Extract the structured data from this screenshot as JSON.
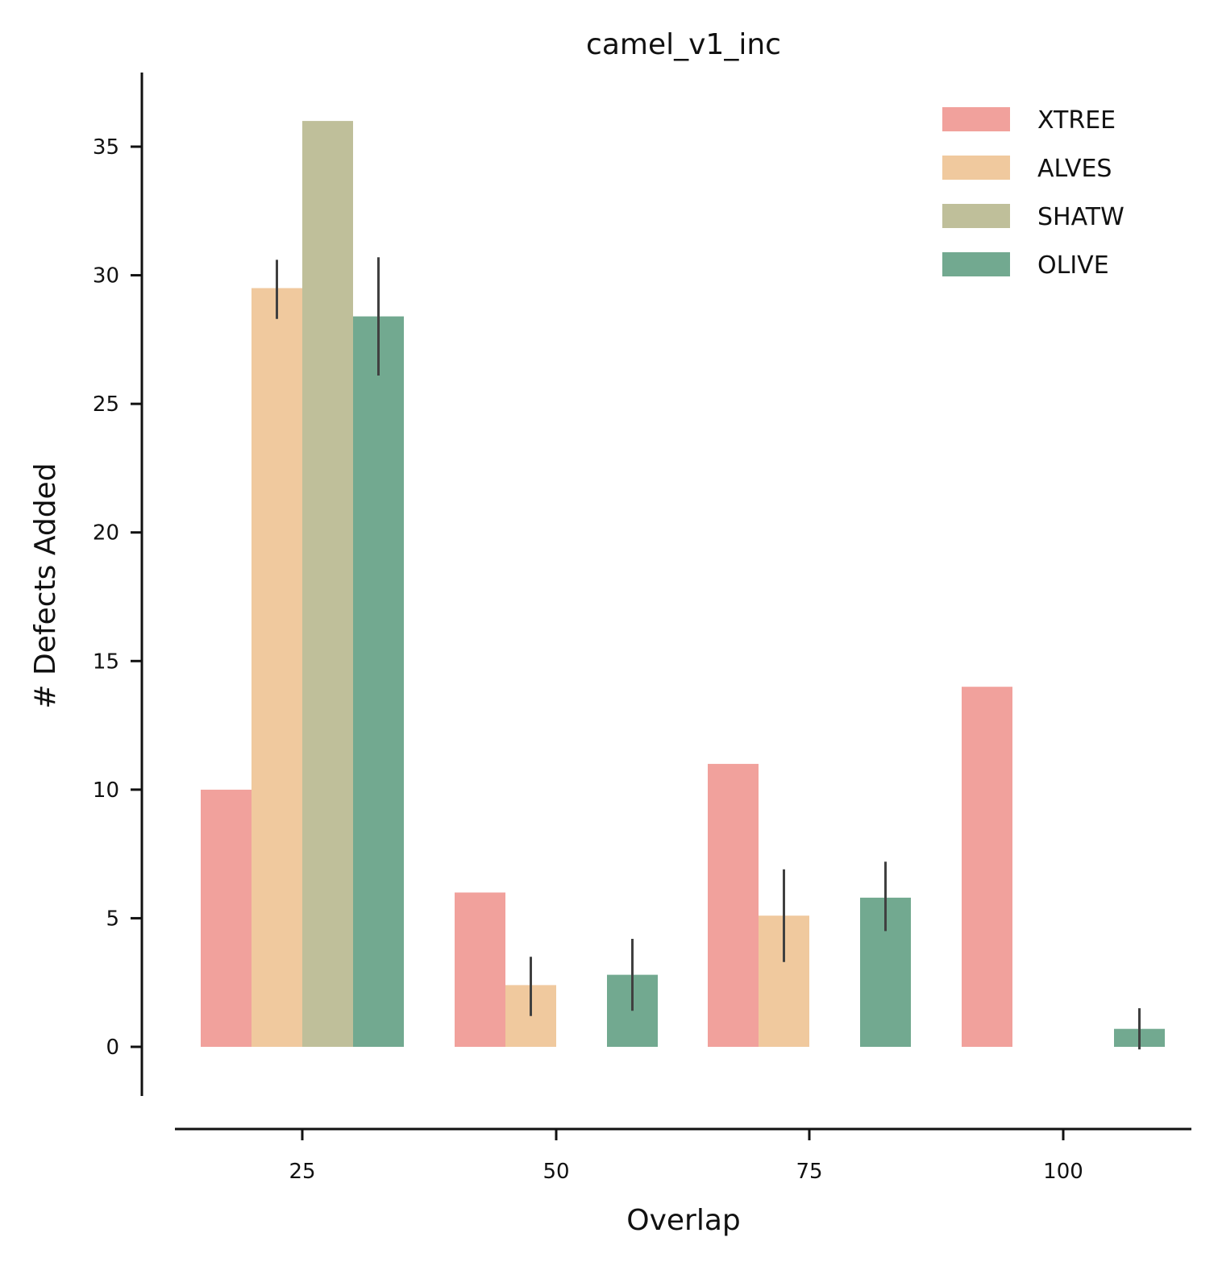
{
  "chart_data": {
    "type": "bar",
    "title": "camel_v1_inc",
    "xlabel": "Overlap",
    "ylabel": "# Defects Added",
    "categories": [
      "25",
      "50",
      "75",
      "100"
    ],
    "xticks": [
      "25",
      "50",
      "75",
      "100"
    ],
    "yticks": [
      "0",
      "5",
      "10",
      "15",
      "20",
      "25",
      "30",
      "35"
    ],
    "ylim": [
      -2,
      37.8
    ],
    "grid": false,
    "legend": "top-right",
    "series": [
      {
        "name": "XTREE",
        "color": "#f1a19c",
        "values": [
          10,
          6,
          11,
          14
        ],
        "err_low": [
          null,
          null,
          null,
          null
        ],
        "err_high": [
          null,
          null,
          null,
          null
        ]
      },
      {
        "name": "ALVES",
        "color": "#f0c99e",
        "values": [
          29.5,
          2.4,
          5.1,
          null
        ],
        "err_low": [
          28.3,
          1.2,
          3.3,
          null
        ],
        "err_high": [
          30.6,
          3.5,
          6.9,
          null
        ]
      },
      {
        "name": "SHATW",
        "color": "#bfbf9a",
        "values": [
          36,
          null,
          null,
          null
        ],
        "err_low": [
          null,
          null,
          null,
          null
        ],
        "err_high": [
          null,
          null,
          null,
          null
        ]
      },
      {
        "name": "OLIVE",
        "color": "#72a990",
        "values": [
          28.4,
          2.8,
          5.8,
          0.7
        ],
        "err_low": [
          26.1,
          1.4,
          4.5,
          -0.1
        ],
        "err_high": [
          30.7,
          4.2,
          7.2,
          1.5
        ]
      }
    ]
  }
}
